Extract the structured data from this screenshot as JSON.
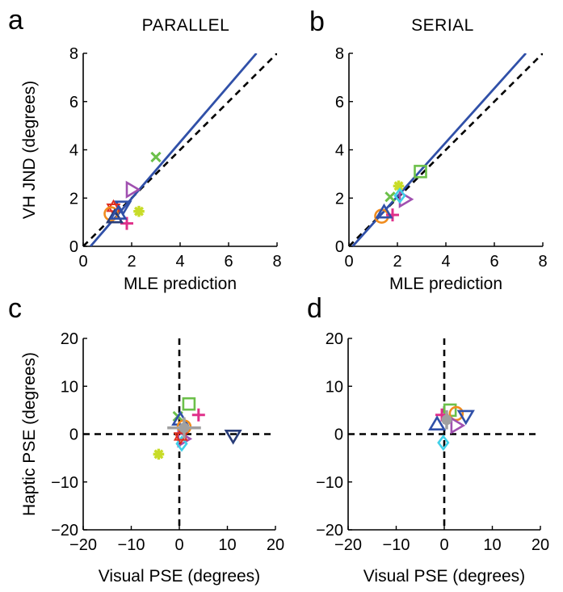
{
  "colors": {
    "fit_line": "#3050a8",
    "axes": "#000000",
    "gray_marker": "#a0a0a0",
    "green": "#6cc04a",
    "yellowgreen": "#c8dc28",
    "magenta": "#e0308a",
    "purple": "#a050b0",
    "orange": "#f08c1e",
    "blue": "#3050a8",
    "cyan": "#40d0e8",
    "red": "#e03020",
    "navy": "#283c78"
  },
  "chart_data": [
    {
      "id": "a",
      "panel_letter": "a",
      "title": "PARALLEL",
      "type": "scatter",
      "xlabel": "MLE prediction",
      "ylabel": "VH JND (degrees)",
      "xlim": [
        0,
        8
      ],
      "ylim": [
        0,
        8
      ],
      "xticks": [
        "0",
        "2",
        "4",
        "6",
        "8"
      ],
      "yticks": [
        "0",
        "2",
        "4",
        "6",
        "8"
      ],
      "identity_line": {
        "x": [
          0,
          8
        ],
        "y": [
          0,
          8
        ]
      },
      "fit_line": {
        "x": [
          0.3,
          7.15
        ],
        "y": [
          0,
          8
        ]
      },
      "points": [
        {
          "marker": "x",
          "color": "green",
          "x": 3.0,
          "y": 3.7
        },
        {
          "marker": "tri-right",
          "color": "purple",
          "x": 2.0,
          "y": 2.35
        },
        {
          "marker": "asterisk",
          "color": "yellowgreen",
          "x": 2.3,
          "y": 1.45
        },
        {
          "marker": "plus",
          "color": "magenta",
          "x": 1.8,
          "y": 0.95
        },
        {
          "marker": "tri-down",
          "color": "blue",
          "x": 1.65,
          "y": 1.65
        },
        {
          "marker": "hexagram",
          "color": "red",
          "x": 1.25,
          "y": 1.6
        },
        {
          "marker": "circle",
          "color": "orange",
          "x": 1.15,
          "y": 1.35
        },
        {
          "marker": "tri-up",
          "color": "navy",
          "x": 1.3,
          "y": 1.2
        },
        {
          "marker": "tri-up",
          "color": "blue",
          "x": 1.45,
          "y": 1.35
        }
      ]
    },
    {
      "id": "b",
      "panel_letter": "b",
      "title": "SERIAL",
      "type": "scatter",
      "xlabel": "MLE prediction",
      "ylabel": "",
      "xlim": [
        0,
        8
      ],
      "ylim": [
        0,
        8
      ],
      "xticks": [
        "0",
        "2",
        "4",
        "6",
        "8"
      ],
      "yticks": [
        "0",
        "2",
        "4",
        "6",
        "8"
      ],
      "identity_line": {
        "x": [
          0,
          8
        ],
        "y": [
          0,
          8
        ]
      },
      "fit_line": {
        "x": [
          0.15,
          7.3
        ],
        "y": [
          0,
          8
        ]
      },
      "points": [
        {
          "marker": "square",
          "color": "green",
          "x": 2.95,
          "y": 3.1
        },
        {
          "marker": "asterisk",
          "color": "yellowgreen",
          "x": 2.05,
          "y": 2.5
        },
        {
          "marker": "x",
          "color": "green",
          "x": 1.7,
          "y": 2.05
        },
        {
          "marker": "tri-right",
          "color": "purple",
          "x": 2.3,
          "y": 1.95
        },
        {
          "marker": "diamond",
          "color": "cyan",
          "x": 2.1,
          "y": 2.1
        },
        {
          "marker": "circle",
          "color": "orange",
          "x": 1.35,
          "y": 1.25
        },
        {
          "marker": "plus",
          "color": "magenta",
          "x": 1.8,
          "y": 1.3
        },
        {
          "marker": "tri-up",
          "color": "blue",
          "x": 1.45,
          "y": 1.4
        }
      ]
    },
    {
      "id": "c",
      "panel_letter": "c",
      "title": "",
      "type": "scatter",
      "xlabel": "Visual PSE (degrees)",
      "ylabel": "Haptic PSE (degrees)",
      "xlim": [
        -20,
        20
      ],
      "ylim": [
        -20,
        20
      ],
      "xticks": [
        "−20",
        "−10",
        "0",
        "10",
        "20"
      ],
      "yticks": [
        "−20",
        "−10",
        "0",
        "10",
        "20"
      ],
      "zero_lines": true,
      "errorbar": {
        "x": 1.0,
        "y": 1.3,
        "xerr": 3.5,
        "yerr": 2.2
      },
      "points": [
        {
          "marker": "square",
          "color": "green",
          "x": 2.0,
          "y": 6.3
        },
        {
          "marker": "plus",
          "color": "magenta",
          "x": 4.0,
          "y": 4.0
        },
        {
          "marker": "x",
          "color": "green",
          "x": -0.3,
          "y": 3.7
        },
        {
          "marker": "tri-up",
          "color": "blue",
          "x": 0.2,
          "y": 3.0
        },
        {
          "marker": "circle",
          "color": "orange",
          "x": 1.0,
          "y": 1.5
        },
        {
          "marker": "tri-down",
          "color": "navy",
          "x": 11.2,
          "y": -0.3
        },
        {
          "marker": "tri-right",
          "color": "purple",
          "x": 0.8,
          "y": -1.0
        },
        {
          "marker": "diamond",
          "color": "cyan",
          "x": 0.5,
          "y": -2.0
        },
        {
          "marker": "hexagram",
          "color": "red",
          "x": 0.3,
          "y": -0.5
        },
        {
          "marker": "asterisk",
          "color": "yellowgreen",
          "x": -4.3,
          "y": -4.2
        }
      ]
    },
    {
      "id": "d",
      "panel_letter": "d",
      "title": "",
      "type": "scatter",
      "xlabel": "Visual PSE (degrees)",
      "ylabel": "",
      "xlim": [
        -20,
        20
      ],
      "ylim": [
        -20,
        20
      ],
      "xticks": [
        "−20",
        "−10",
        "0",
        "10",
        "20"
      ],
      "yticks": [
        "−20",
        "−10",
        "0",
        "10",
        "20"
      ],
      "zero_lines": true,
      "errorbar": {
        "x": 0.5,
        "y": 3.0,
        "xerr": 0.8,
        "yerr": 2.0
      },
      "points": [
        {
          "marker": "square",
          "color": "green",
          "x": 1.2,
          "y": 5.0
        },
        {
          "marker": "circle",
          "color": "orange",
          "x": 2.5,
          "y": 4.3
        },
        {
          "marker": "tri-down",
          "color": "blue",
          "x": 4.5,
          "y": 3.8
        },
        {
          "marker": "plus",
          "color": "magenta",
          "x": -0.5,
          "y": 4.0
        },
        {
          "marker": "tri-up",
          "color": "blue",
          "x": -1.5,
          "y": 2.0
        },
        {
          "marker": "tri-right",
          "color": "purple",
          "x": 2.5,
          "y": 1.8
        },
        {
          "marker": "diamond",
          "color": "cyan",
          "x": -0.2,
          "y": -1.8
        }
      ]
    }
  ]
}
